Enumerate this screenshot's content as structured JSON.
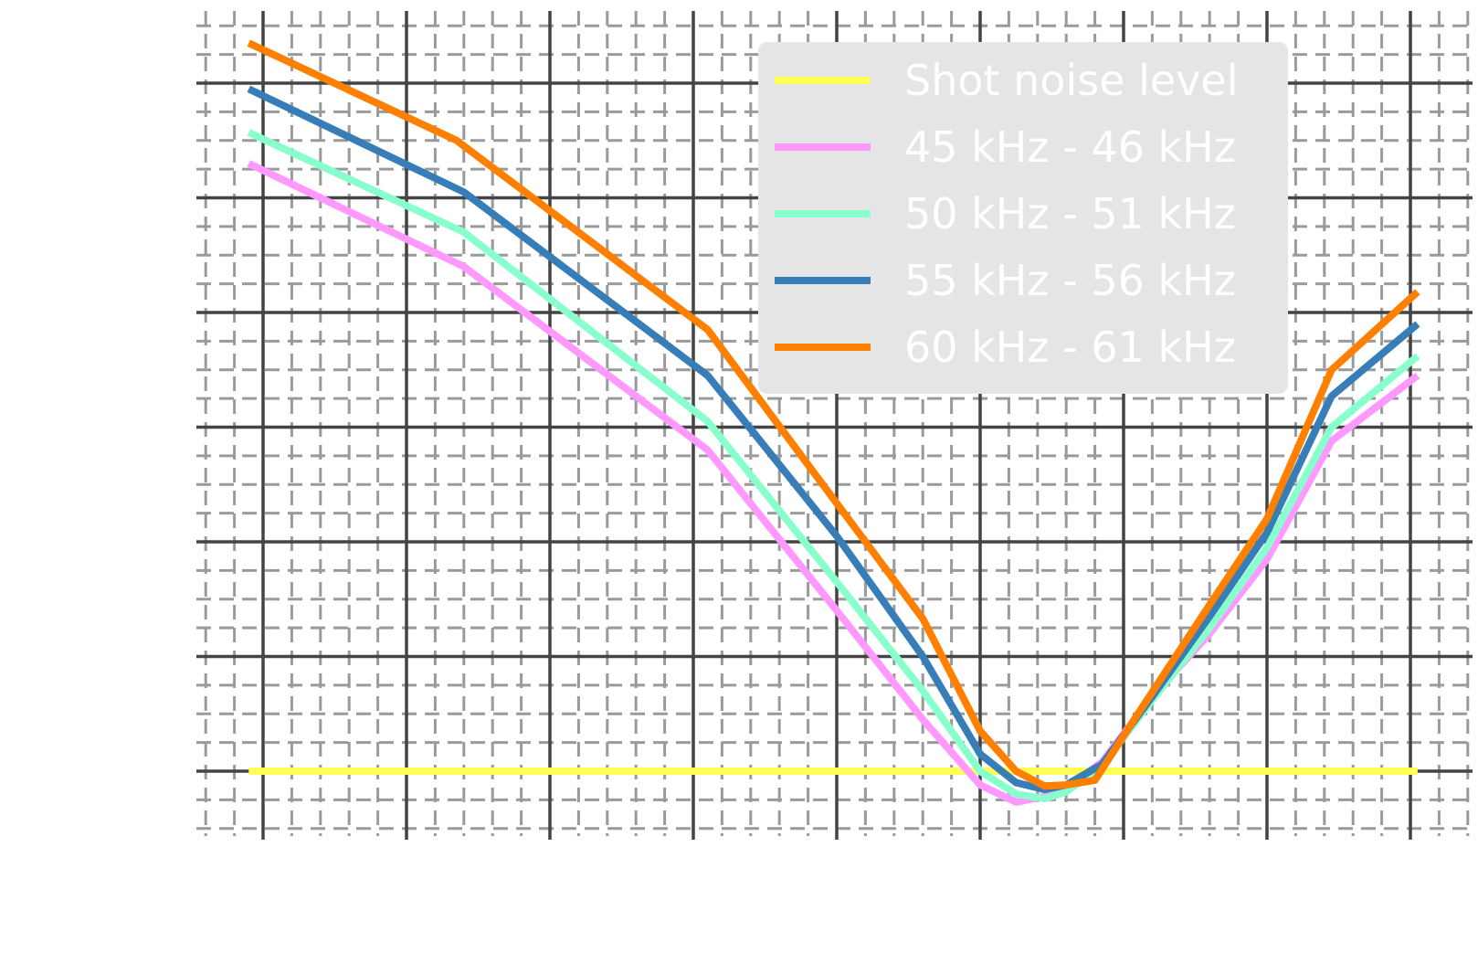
{
  "chart_data": {
    "type": "line",
    "title": "",
    "xlabel": "",
    "ylabel": "",
    "xlim": [
      -0.45,
      8.45
    ],
    "ylim": [
      -0.6,
      6.6
    ],
    "x_major_ticks": [
      0,
      1,
      2,
      3,
      4,
      5,
      6,
      7,
      8
    ],
    "y_major_ticks": [
      0,
      1,
      2,
      3,
      4,
      5,
      6
    ],
    "grid": {
      "major": true,
      "minor": true,
      "minor_style": "dashed"
    },
    "legend": {
      "placement": "top-right",
      "background": "#e5e5e5"
    },
    "tick_labels_visible": false,
    "series": [
      {
        "name": "Shot noise level",
        "color": "#ffff55",
        "x": [
          -0.1,
          8.05
        ],
        "y": [
          0.0,
          0.0
        ]
      },
      {
        "name": "45 kHz - 46 kHz",
        "color": "#ff99ff",
        "x": [
          -0.1,
          1.4,
          3.1,
          4.0,
          4.6,
          5.0,
          5.25,
          5.45,
          5.6,
          5.85,
          6.2,
          6.6,
          7.0,
          7.45,
          8.05
        ],
        "y": [
          5.3,
          4.4,
          2.8,
          1.4,
          0.45,
          -0.12,
          -0.27,
          -0.22,
          -0.15,
          0.08,
          0.65,
          1.2,
          1.85,
          2.88,
          3.45
        ]
      },
      {
        "name": "50 kHz - 51 kHz",
        "color": "#88ffcc",
        "x": [
          -0.1,
          1.4,
          3.1,
          4.0,
          4.6,
          5.0,
          5.25,
          5.45,
          5.6,
          5.85,
          6.2,
          6.6,
          7.0,
          7.45,
          8.05
        ],
        "y": [
          5.57,
          4.7,
          3.05,
          1.65,
          0.7,
          0.0,
          -0.2,
          -0.24,
          -0.18,
          0.05,
          0.62,
          1.25,
          1.95,
          3.0,
          3.62
        ]
      },
      {
        "name": "55 kHz - 56 kHz",
        "color": "#377eb8",
        "x": [
          -0.1,
          1.4,
          3.1,
          4.0,
          4.6,
          5.0,
          5.25,
          5.45,
          5.6,
          5.85,
          6.2,
          6.6,
          7.0,
          7.45,
          8.05
        ],
        "y": [
          5.95,
          5.05,
          3.45,
          2.05,
          1.0,
          0.15,
          -0.1,
          -0.16,
          -0.12,
          0.06,
          0.65,
          1.35,
          2.08,
          3.27,
          3.9
        ]
      },
      {
        "name": "60 kHz - 61 kHz",
        "color": "#ff7f00",
        "x": [
          -0.1,
          1.35,
          3.1,
          3.95,
          4.6,
          5.0,
          5.25,
          5.45,
          5.6,
          5.8,
          6.1,
          6.6,
          7.0,
          7.45,
          8.05
        ],
        "y": [
          6.35,
          5.5,
          3.85,
          2.42,
          1.33,
          0.35,
          0.0,
          -0.13,
          -0.12,
          -0.08,
          0.5,
          1.45,
          2.2,
          3.5,
          4.18
        ]
      }
    ]
  }
}
